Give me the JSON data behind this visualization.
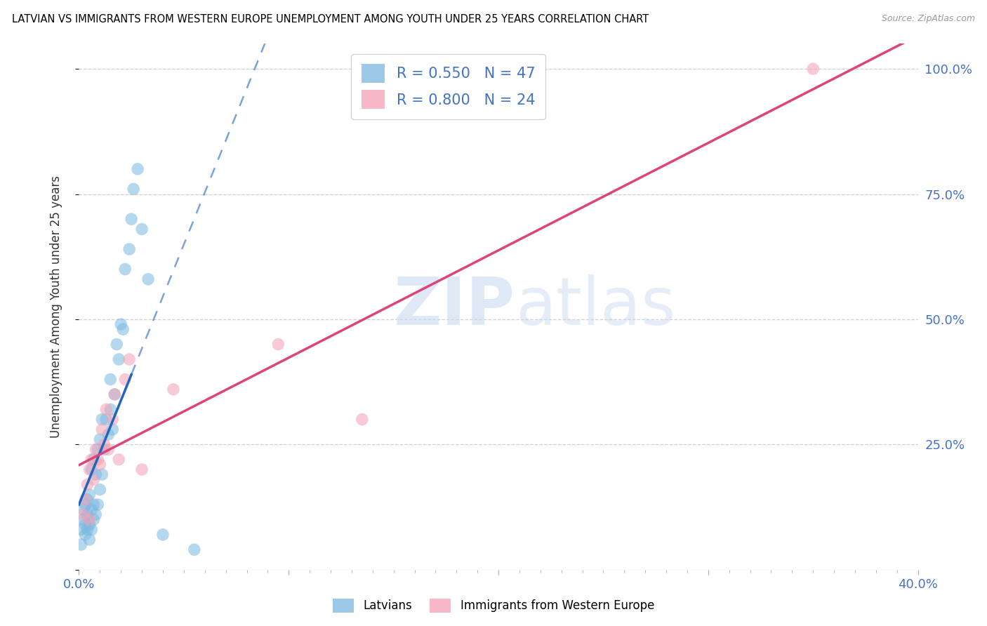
{
  "title": "LATVIAN VS IMMIGRANTS FROM WESTERN EUROPE UNEMPLOYMENT AMONG YOUTH UNDER 25 YEARS CORRELATION CHART",
  "source": "Source: ZipAtlas.com",
  "ylabel": "Unemployment Among Youth under 25 years",
  "watermark_zip": "ZIP",
  "watermark_atlas": "atlas",
  "legend_latvians": "Latvians",
  "legend_immigrants": "Immigrants from Western Europe",
  "R_latvians": 0.55,
  "N_latvians": 47,
  "R_immigrants": 0.8,
  "N_immigrants": 24,
  "xlim": [
    0.0,
    0.4
  ],
  "ylim": [
    0.0,
    1.05
  ],
  "yticks": [
    0.0,
    0.25,
    0.5,
    0.75,
    1.0
  ],
  "ytick_right_labels": [
    "",
    "25.0%",
    "50.0%",
    "75.0%",
    "100.0%"
  ],
  "xtick_left_label": "0.0%",
  "xtick_right_label": "40.0%",
  "color_latvians": "#7ab8e0",
  "color_immigrants": "#f4a0b5",
  "color_trend_latvians": "#2266bb",
  "color_trend_immigrants": "#dd4477",
  "color_blue": "#4472c4",
  "color_grid": "#d0d0d0",
  "latvians_x": [
    0.001,
    0.001,
    0.002,
    0.002,
    0.003,
    0.003,
    0.003,
    0.004,
    0.004,
    0.004,
    0.005,
    0.005,
    0.005,
    0.006,
    0.006,
    0.006,
    0.007,
    0.007,
    0.007,
    0.008,
    0.008,
    0.009,
    0.009,
    0.01,
    0.01,
    0.011,
    0.011,
    0.012,
    0.013,
    0.014,
    0.015,
    0.015,
    0.016,
    0.017,
    0.018,
    0.019,
    0.02,
    0.021,
    0.022,
    0.024,
    0.025,
    0.026,
    0.028,
    0.03,
    0.033,
    0.04,
    0.055
  ],
  "latvians_y": [
    0.05,
    0.08,
    0.1,
    0.12,
    0.07,
    0.09,
    0.13,
    0.08,
    0.11,
    0.14,
    0.06,
    0.09,
    0.15,
    0.08,
    0.12,
    0.2,
    0.1,
    0.13,
    0.22,
    0.11,
    0.19,
    0.13,
    0.24,
    0.16,
    0.26,
    0.19,
    0.3,
    0.24,
    0.3,
    0.27,
    0.32,
    0.38,
    0.28,
    0.35,
    0.45,
    0.42,
    0.49,
    0.48,
    0.6,
    0.64,
    0.7,
    0.76,
    0.8,
    0.68,
    0.58,
    0.07,
    0.04
  ],
  "immigrants_x": [
    0.002,
    0.003,
    0.004,
    0.005,
    0.005,
    0.006,
    0.007,
    0.008,
    0.009,
    0.01,
    0.011,
    0.012,
    0.013,
    0.014,
    0.016,
    0.017,
    0.019,
    0.022,
    0.024,
    0.03,
    0.045,
    0.095,
    0.135,
    0.35
  ],
  "immigrants_y": [
    0.11,
    0.14,
    0.17,
    0.1,
    0.2,
    0.22,
    0.18,
    0.24,
    0.22,
    0.21,
    0.28,
    0.25,
    0.32,
    0.24,
    0.3,
    0.35,
    0.22,
    0.38,
    0.42,
    0.2,
    0.36,
    0.45,
    0.3,
    1.0
  ],
  "trend_lv_x0": 0.0,
  "trend_lv_x1": 0.4,
  "trend_im_x0": 0.0,
  "trend_im_x1": 0.4
}
